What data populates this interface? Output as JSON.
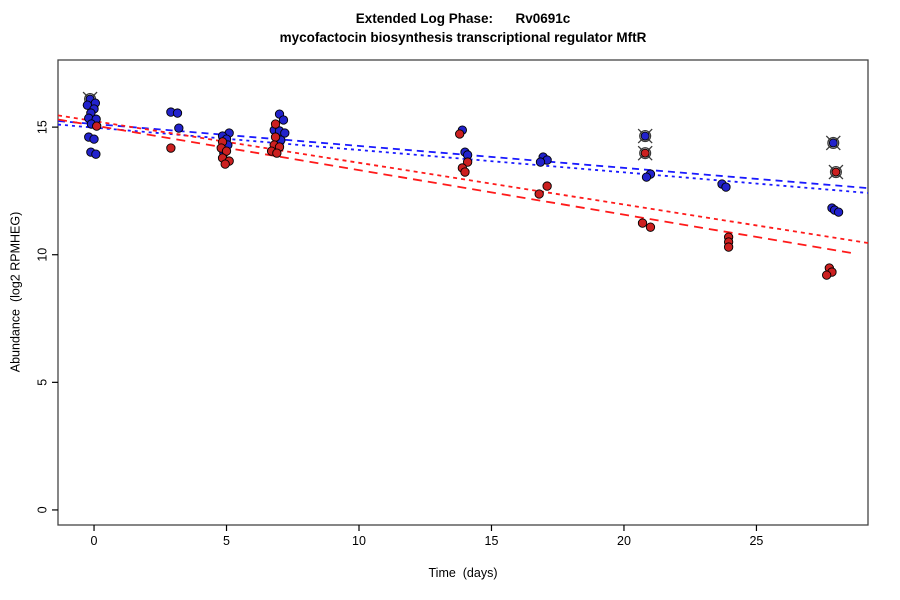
{
  "window": {
    "background": "#ffffff"
  },
  "chart_data": {
    "type": "scatter",
    "title": "Extended Log Phase:      Rv0691c",
    "subtitle": "mycofactocin biosynthesis transcriptional regulator MftR",
    "xlabel": "Time  (days)",
    "ylabel": "Abundance  (log2 RPMHEG)",
    "grid": false,
    "legend": "none",
    "x_axis": {
      "ticks": [
        0,
        5,
        10,
        15,
        20,
        25
      ],
      "range": [
        -1.36,
        29.21
      ]
    },
    "y_axis": {
      "ticks": [
        0,
        5,
        10,
        15
      ],
      "range": [
        -0.59,
        17.63
      ]
    },
    "point_style": {
      "radius": 4.2,
      "stroke": "#000000"
    },
    "outlier_marker": {
      "shape": "circle-x",
      "color": "#3a3a3a"
    },
    "series": [
      {
        "name": "blue",
        "color": "#2222cc",
        "line_color": "#1a1aff",
        "points": [
          [
            -0.15,
            16.1,
            1
          ],
          [
            0.05,
            15.94
          ],
          [
            -0.25,
            15.86
          ],
          [
            0.0,
            15.71
          ],
          [
            -0.12,
            15.55
          ],
          [
            -0.2,
            15.35
          ],
          [
            0.08,
            15.31
          ],
          [
            -0.1,
            15.12
          ],
          [
            -0.2,
            14.61
          ],
          [
            0.0,
            14.53
          ],
          [
            -0.12,
            14.02
          ],
          [
            0.07,
            13.94
          ],
          [
            2.9,
            15.59
          ],
          [
            3.15,
            15.55
          ],
          [
            3.2,
            14.96
          ],
          [
            5.1,
            14.77
          ],
          [
            4.85,
            14.65
          ],
          [
            5.0,
            14.53
          ],
          [
            5.05,
            14.3
          ],
          [
            4.9,
            13.98
          ],
          [
            7.0,
            15.51
          ],
          [
            7.15,
            15.28
          ],
          [
            6.8,
            14.88
          ],
          [
            7.0,
            14.85
          ],
          [
            7.2,
            14.77
          ],
          [
            7.05,
            14.49
          ],
          [
            13.9,
            14.88
          ],
          [
            14.0,
            14.02
          ],
          [
            14.1,
            13.91
          ],
          [
            16.95,
            13.83
          ],
          [
            17.1,
            13.71
          ],
          [
            16.85,
            13.63
          ],
          [
            20.8,
            14.65,
            1
          ],
          [
            21.0,
            13.16
          ],
          [
            20.85,
            13.04
          ],
          [
            23.7,
            12.77
          ],
          [
            23.85,
            12.65
          ],
          [
            27.9,
            14.38,
            1
          ],
          [
            27.85,
            11.83
          ],
          [
            27.95,
            11.75
          ],
          [
            28.1,
            11.67
          ]
        ]
      },
      {
        "name": "red",
        "color": "#cc2020",
        "line_color": "#ff1a1a",
        "points": [
          [
            0.1,
            15.04
          ],
          [
            2.9,
            14.18
          ],
          [
            4.85,
            14.42
          ],
          [
            4.8,
            14.18
          ],
          [
            5.0,
            14.06
          ],
          [
            4.85,
            13.79
          ],
          [
            5.1,
            13.67
          ],
          [
            4.95,
            13.55
          ],
          [
            6.85,
            15.12
          ],
          [
            6.85,
            14.61
          ],
          [
            6.8,
            14.3
          ],
          [
            7.0,
            14.22
          ],
          [
            6.7,
            14.06
          ],
          [
            6.9,
            13.98
          ],
          [
            13.8,
            14.73
          ],
          [
            14.1,
            13.63
          ],
          [
            13.9,
            13.4
          ],
          [
            14.0,
            13.24
          ],
          [
            17.1,
            12.69
          ],
          [
            16.8,
            12.38
          ],
          [
            20.8,
            13.98,
            1
          ],
          [
            20.7,
            11.24
          ],
          [
            21.0,
            11.08
          ],
          [
            23.95,
            10.69
          ],
          [
            23.95,
            10.5
          ],
          [
            23.95,
            10.3
          ],
          [
            28.0,
            13.24,
            1
          ],
          [
            27.75,
            9.48
          ],
          [
            27.85,
            9.32
          ],
          [
            27.65,
            9.2
          ]
        ]
      }
    ],
    "trend_lines": [
      {
        "series": "blue",
        "style": "long-dash",
        "dash": "7 5",
        "x": [
          -1.36,
          29.21
        ],
        "y": [
          15.24,
          12.61
        ]
      },
      {
        "series": "blue",
        "style": "short-dash",
        "dash": "3 4",
        "x": [
          -1.36,
          29.21
        ],
        "y": [
          15.1,
          12.42
        ]
      },
      {
        "series": "red",
        "style": "short-dash",
        "dash": "4 4",
        "x": [
          -1.36,
          29.21
        ],
        "y": [
          15.46,
          10.46
        ]
      },
      {
        "series": "red",
        "style": "long-dash",
        "dash": "9 6",
        "x": [
          -1.36,
          28.7
        ],
        "y": [
          15.3,
          10.05
        ]
      }
    ]
  }
}
